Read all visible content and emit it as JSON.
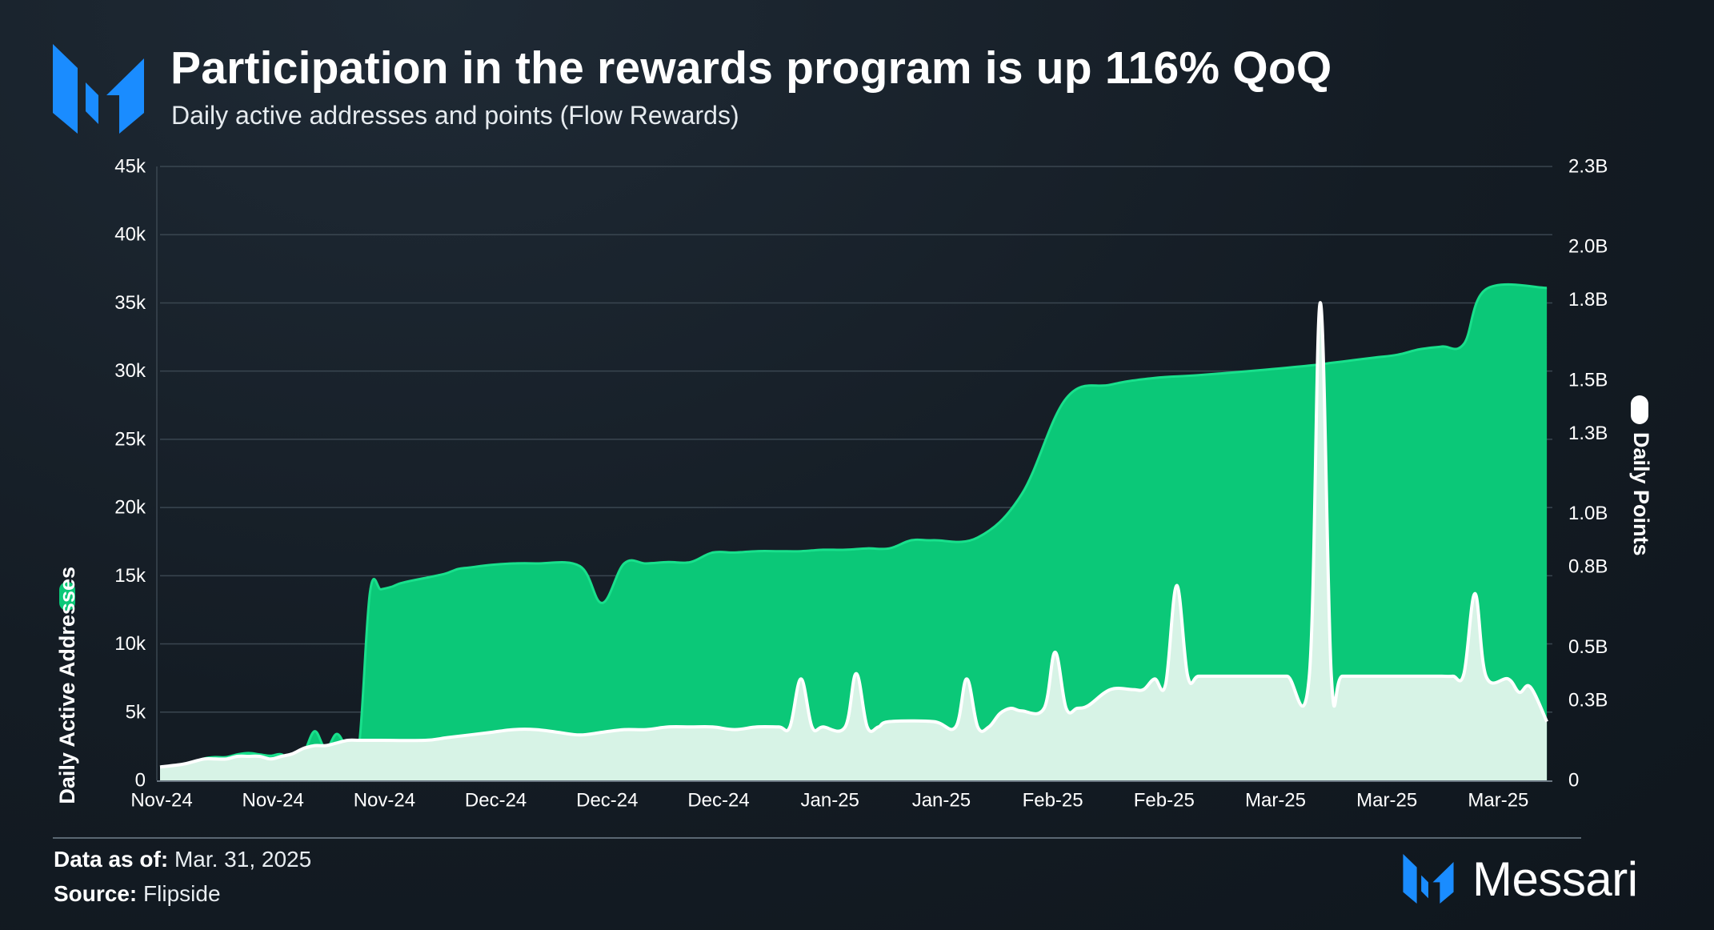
{
  "header": {
    "title": "Participation in the rewards program is up 116% QoQ",
    "subtitle": "Daily active addresses and points (Flow Rewards)",
    "logo_icon": "messari-m-logo"
  },
  "footer": {
    "data_as_of_label": "Data as of:",
    "data_as_of_value": "Mar. 31, 2025",
    "source_label": "Source:",
    "source_value": "Flipside",
    "brand_name": "Messari"
  },
  "colors": {
    "accent_blue": "#1a8cff",
    "addresses_green": "#0bc878",
    "addresses_line": "#19e08c",
    "points_fill": "#d7f3e6",
    "points_line": "#ffffff",
    "grid": "#3a4650",
    "axis_text": "#ffffff"
  },
  "chart_data": {
    "type": "area",
    "x_tick_labels": [
      "Nov-24",
      "Nov-24",
      "Nov-24",
      "Dec-24",
      "Dec-24",
      "Dec-24",
      "Jan-25",
      "Jan-25",
      "Feb-25",
      "Feb-25",
      "Mar-25",
      "Mar-25",
      "Mar-25"
    ],
    "y_left": {
      "label": "Daily Active Addresses",
      "range": [
        0,
        45000
      ],
      "ticks": [
        0,
        5000,
        10000,
        15000,
        20000,
        25000,
        30000,
        35000,
        40000,
        45000
      ],
      "tick_labels": [
        "0",
        "5k",
        "10k",
        "15k",
        "20k",
        "25k",
        "30k",
        "35k",
        "40k",
        "45k"
      ]
    },
    "y_right": {
      "label": "Daily Points",
      "range": [
        0,
        2300000000
      ],
      "ticks": [
        0,
        300000000,
        500000000,
        800000000,
        1000000000,
        1300000000,
        1500000000,
        1800000000,
        2000000000,
        2300000000
      ],
      "tick_labels": [
        "0",
        "0.3B",
        "0.5B",
        "0.8B",
        "1.0B",
        "1.3B",
        "1.5B",
        "1.8B",
        "2.0B",
        "2.3B"
      ]
    },
    "grid": true,
    "x_range": [
      0,
      126
    ],
    "series": [
      {
        "name": "Daily Active Addresses",
        "axis": "left",
        "x": [
          0,
          2,
          3,
          4,
          5,
          6,
          7,
          8,
          9,
          10,
          11,
          12,
          13,
          14,
          15,
          16,
          17,
          18,
          19,
          20,
          21,
          22,
          25,
          26,
          27,
          28,
          30,
          32,
          34,
          38,
          40,
          42,
          44,
          46,
          48,
          50,
          52,
          54,
          56,
          58,
          60,
          62,
          64,
          66,
          68,
          70,
          74,
          78,
          82,
          86,
          90,
          94,
          100,
          104,
          106,
          108,
          110,
          112,
          114,
          116,
          118,
          120,
          125.5
        ],
        "values": [
          900,
          1000,
          1300,
          1600,
          1700,
          1700,
          1900,
          2000,
          1900,
          1800,
          1900,
          1300,
          2000,
          3600,
          2300,
          3400,
          2300,
          2500,
          13800,
          14000,
          14200,
          14500,
          15000,
          15200,
          15500,
          15600,
          15800,
          15900,
          15900,
          15700,
          13000,
          15900,
          15900,
          16000,
          16000,
          16700,
          16700,
          16800,
          16800,
          16800,
          16900,
          16900,
          17000,
          17000,
          17600,
          17600,
          17800,
          21000,
          28000,
          29000,
          29500,
          29700,
          30100,
          30400,
          30600,
          30800,
          31000,
          31200,
          31600,
          31800,
          32000,
          36000,
          36100
        ]
      },
      {
        "name": "Daily Points",
        "axis": "right",
        "x": [
          0,
          2,
          3,
          4,
          5,
          6,
          7,
          8,
          9,
          10,
          11,
          12,
          13,
          14,
          15,
          16,
          17,
          18,
          19,
          20,
          24,
          26,
          28,
          30,
          32,
          34,
          36,
          38,
          40,
          42,
          44,
          46,
          48,
          50,
          52,
          54,
          56,
          57,
          58,
          59,
          60,
          62,
          63,
          64,
          65,
          66,
          70,
          72,
          73,
          74,
          75,
          76,
          77,
          78,
          80,
          81,
          82,
          83,
          84,
          86,
          88,
          89,
          90,
          91,
          92,
          93,
          94,
          96,
          98,
          99,
          100,
          102,
          104,
          105,
          106,
          107,
          110,
          112,
          114,
          116,
          117,
          118,
          119,
          120,
          122,
          123,
          124,
          125.5
        ],
        "values": [
          50000000,
          60000000,
          70000000,
          80000000,
          80000000,
          80000000,
          90000000,
          90000000,
          90000000,
          80000000,
          90000000,
          100000000,
          120000000,
          130000000,
          130000000,
          140000000,
          150000000,
          150000000,
          150000000,
          150000000,
          150000000,
          160000000,
          170000000,
          180000000,
          190000000,
          190000000,
          180000000,
          170000000,
          180000000,
          190000000,
          190000000,
          200000000,
          200000000,
          200000000,
          190000000,
          200000000,
          200000000,
          200000000,
          380000000,
          200000000,
          200000000,
          200000000,
          400000000,
          200000000,
          200000000,
          220000000,
          220000000,
          200000000,
          380000000,
          200000000,
          200000000,
          250000000,
          270000000,
          260000000,
          270000000,
          480000000,
          270000000,
          270000000,
          280000000,
          340000000,
          340000000,
          340000000,
          380000000,
          360000000,
          730000000,
          390000000,
          390000000,
          390000000,
          390000000,
          390000000,
          390000000,
          390000000,
          390000000,
          1790000000,
          390000000,
          390000000,
          390000000,
          390000000,
          390000000,
          390000000,
          390000000,
          400000000,
          700000000,
          390000000,
          380000000,
          330000000,
          350000000,
          220000000
        ]
      }
    ]
  }
}
